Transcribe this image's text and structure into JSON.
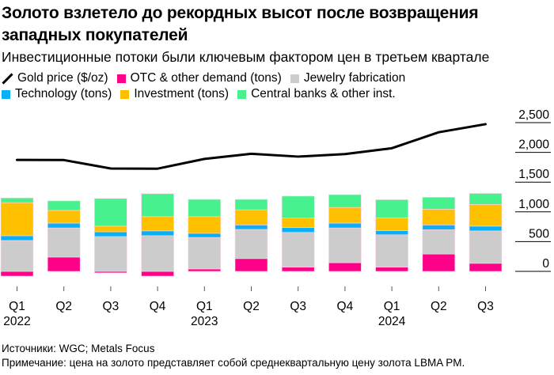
{
  "header": {
    "title": "Золото взлетело до рекордных высот после возвращения западных покупателей",
    "subtitle": "Инвестиционные потоки были ключевым фактором цен в третьем квартале"
  },
  "legend": [
    {
      "key": "gold",
      "label": "Gold price ($/oz)",
      "icon": "line-icon",
      "color": "#000000"
    },
    {
      "key": "otc",
      "label": "OTC & other demand (tons)",
      "icon": "square-icon",
      "color": "#FF0088"
    },
    {
      "key": "jewelry",
      "label": "Jewelry fabrication",
      "icon": "square-icon",
      "color": "#CCCCCC"
    },
    {
      "key": "technology",
      "label": "Technology (tons)",
      "icon": "square-icon",
      "color": "#0AB0F5"
    },
    {
      "key": "investment",
      "label": "Investment (tons)",
      "icon": "square-icon",
      "color": "#FFC000"
    },
    {
      "key": "central_banks",
      "label": "Central banks & other inst.",
      "icon": "square-icon",
      "color": "#47F28E"
    }
  ],
  "chart_data": {
    "type": "bar",
    "stacked": true,
    "title": "Золото взлетело до рекордных высот после возвращения западных покупателей",
    "subtitle": "Инвестиционные потоки были ключевым фактором цен в третьем квартале",
    "categories": [
      "Q1 2022",
      "Q2 2022",
      "Q3 2022",
      "Q4 2022",
      "Q1 2023",
      "Q2 2023",
      "Q3 2023",
      "Q4 2023",
      "Q1 2024",
      "Q2 2024",
      "Q3 2024"
    ],
    "x_tick_labels": [
      "Q1",
      "Q2",
      "Q3",
      "Q4",
      "Q1",
      "Q2",
      "Q3",
      "Q4",
      "Q1",
      "Q2",
      "Q3"
    ],
    "x_year_labels": [
      {
        "index": 0,
        "label": "2022"
      },
      {
        "index": 4,
        "label": "2023"
      },
      {
        "index": 8,
        "label": "2024"
      }
    ],
    "y_axis": {
      "position": "right",
      "ticks": [
        "0",
        "500",
        "1,000",
        "1,500",
        "2,000",
        "2,500"
      ],
      "tick_values": [
        0,
        500,
        1000,
        1500,
        2000,
        2500
      ],
      "ylim": [
        -100,
        2500
      ]
    },
    "grid": false,
    "legend_position": "top-left",
    "series": [
      {
        "name": "OTC & other demand (tons)",
        "key": "otc",
        "color": "#FF0088",
        "values": [
          -80,
          240,
          -25,
          -80,
          40,
          215,
          70,
          145,
          70,
          290,
          135
        ]
      },
      {
        "name": "Jewelry fabrication",
        "key": "jewelry",
        "color": "#CCCCCC",
        "values": [
          519,
          490,
          585,
          600,
          530,
          490,
          585,
          585,
          545,
          410,
          545
        ]
      },
      {
        "name": "Technology (tons)",
        "key": "technology",
        "color": "#0AB0F5",
        "values": [
          80,
          80,
          80,
          80,
          70,
          75,
          80,
          80,
          70,
          80,
          80
        ]
      },
      {
        "name": "Investment (tons)",
        "key": "investment",
        "color": "#FFC000",
        "values": [
          555,
          215,
          95,
          240,
          280,
          255,
          160,
          265,
          215,
          265,
          365
        ]
      },
      {
        "name": "Central banks & other inst.",
        "key": "central_banks",
        "color": "#47F28E",
        "values": [
          80,
          160,
          465,
          385,
          290,
          175,
          370,
          215,
          305,
          200,
          185
        ]
      }
    ],
    "line_series": {
      "name": "Gold price ($/oz)",
      "color": "#000000",
      "values": [
        1874,
        1871,
        1729,
        1726,
        1890,
        1976,
        1929,
        1971,
        2070,
        2338,
        2474
      ]
    }
  },
  "footer": {
    "sources": "Источники: WGC; Metals Focus",
    "note": "Примечание: цена на золото представляет собой среднеквартальную цену золота LBMA PM."
  }
}
